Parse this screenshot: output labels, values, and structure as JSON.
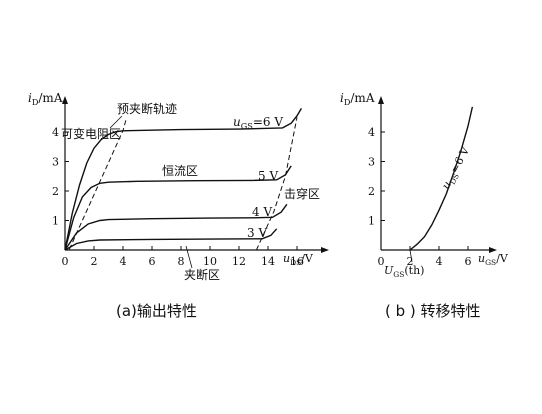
{
  "chart_data": [
    {
      "type": "line",
      "caption": "(a)输出特性",
      "ylabel": "i",
      "ylabel_sub": "D",
      "ylabel_unit": "/mA",
      "xlabel": "u",
      "xlabel_sub": "DS",
      "xlabel_unit": "/V",
      "xlim": [
        0,
        17
      ],
      "ylim": [
        0,
        4.9
      ],
      "x_ticks": [
        0,
        2,
        4,
        6,
        8,
        10,
        12,
        14,
        16
      ],
      "y_ticks": [
        1,
        2,
        3,
        4
      ],
      "region_labels": {
        "variable_resistance": "可变电阻区",
        "pinch_off_trace": "预夹断轨迹",
        "constant_current": "恒流区",
        "breakdown": "击穿区",
        "cutoff": "夹断区"
      },
      "series": [
        {
          "name": "uGS=6 V",
          "label_main": "u",
          "label_sub": "GS",
          "label_rest": "=6 V",
          "points": [
            [
              0,
              0
            ],
            [
              0.5,
              1.25
            ],
            [
              1,
              2.2
            ],
            [
              1.5,
              2.95
            ],
            [
              2,
              3.45
            ],
            [
              2.5,
              3.75
            ],
            [
              3,
              3.92
            ],
            [
              3.5,
              4.01
            ],
            [
              4,
              4.04
            ],
            [
              8,
              4.08
            ],
            [
              12,
              4.1
            ],
            [
              15,
              4.14
            ],
            [
              15.6,
              4.3
            ],
            [
              16,
              4.55
            ],
            [
              16.3,
              4.8
            ]
          ]
        },
        {
          "name": "5 V",
          "label_main": "",
          "label_sub": "",
          "label_rest": "5 V",
          "points": [
            [
              0,
              0
            ],
            [
              0.6,
              1.1
            ],
            [
              1.2,
              1.8
            ],
            [
              1.8,
              2.12
            ],
            [
              2.4,
              2.26
            ],
            [
              3,
              2.3
            ],
            [
              5,
              2.33
            ],
            [
              9,
              2.35
            ],
            [
              13,
              2.36
            ],
            [
              14.6,
              2.38
            ],
            [
              15.2,
              2.55
            ],
            [
              15.6,
              2.85
            ]
          ]
        },
        {
          "name": "4 V",
          "label_main": "",
          "label_sub": "",
          "label_rest": "4 V",
          "points": [
            [
              0,
              0
            ],
            [
              0.8,
              0.58
            ],
            [
              1.6,
              0.88
            ],
            [
              2.4,
              1.0
            ],
            [
              3,
              1.03
            ],
            [
              6,
              1.06
            ],
            [
              10,
              1.08
            ],
            [
              13,
              1.09
            ],
            [
              14.3,
              1.11
            ],
            [
              14.9,
              1.28
            ],
            [
              15.3,
              1.55
            ]
          ]
        },
        {
          "name": "3 V",
          "label_main": "",
          "label_sub": "",
          "label_rest": "3 V",
          "points": [
            [
              0,
              0
            ],
            [
              0.8,
              0.22
            ],
            [
              1.6,
              0.31
            ],
            [
              2.4,
              0.34
            ],
            [
              6,
              0.36
            ],
            [
              10,
              0.37
            ],
            [
              13.6,
              0.38
            ],
            [
              14.2,
              0.5
            ],
            [
              14.6,
              0.72
            ]
          ]
        }
      ],
      "pinch_off_trace": [
        [
          0.3,
          0.02
        ],
        [
          4.0,
          4.05
        ],
        [
          4.2,
          4.4
        ]
      ],
      "breakdown_trace": [
        [
          13.2,
          0.0
        ],
        [
          14.4,
          1.3
        ],
        [
          15.2,
          2.5
        ],
        [
          16.0,
          4.5
        ]
      ]
    },
    {
      "type": "line",
      "caption": "( b ) 转移特性",
      "ylabel": "i",
      "ylabel_sub": "D",
      "ylabel_unit": "/mA",
      "xlabel": "u",
      "xlabel_sub": "GS",
      "xlabel_unit": "/V",
      "xlim": [
        0,
        7.3
      ],
      "ylim": [
        0,
        4.9
      ],
      "x_ticks": [
        0,
        2,
        4,
        6
      ],
      "y_ticks": [
        1,
        2,
        3,
        4
      ],
      "threshold_label": {
        "main": "U",
        "sub": "GS",
        "rest": "(th)",
        "value": 2
      },
      "curve_label": {
        "main": "u",
        "sub": "DS",
        "rest": "=6 V"
      },
      "series": [
        {
          "name": "uDS=6 V",
          "points": [
            [
              2,
              0
            ],
            [
              2.5,
              0.2
            ],
            [
              3,
              0.45
            ],
            [
              3.5,
              0.85
            ],
            [
              4,
              1.35
            ],
            [
              4.5,
              1.9
            ],
            [
              5,
              2.6
            ],
            [
              5.5,
              3.35
            ],
            [
              6,
              4.2
            ],
            [
              6.3,
              4.85
            ]
          ]
        }
      ]
    }
  ]
}
